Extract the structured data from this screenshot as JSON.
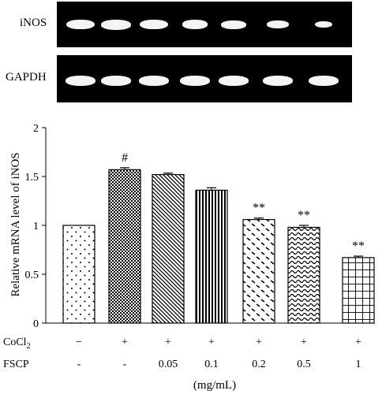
{
  "gels": [
    {
      "label": "iNOS",
      "bands": [
        0.95,
        1.0,
        0.95,
        0.85,
        0.8,
        0.7,
        0.55
      ]
    },
    {
      "label": "GAPDH",
      "bands": [
        1.0,
        1.0,
        1.0,
        1.0,
        1.0,
        1.0,
        1.0
      ]
    }
  ],
  "chart_data": {
    "type": "bar",
    "ylabel": "Relative mRNA level of iNOS",
    "ylim": [
      0,
      2
    ],
    "yticks": [
      "0",
      "0.5",
      "1",
      "1.5",
      "2"
    ],
    "ytick_values": [
      0,
      0.5,
      1,
      1.5,
      2
    ],
    "values": [
      1.0,
      1.57,
      1.52,
      1.36,
      1.06,
      0.98,
      0.67
    ],
    "errors": [
      0,
      0.02,
      0.015,
      0.025,
      0.015,
      0.02,
      0.015
    ],
    "significance": [
      "",
      "#",
      "",
      "",
      "**",
      "**",
      "**"
    ],
    "patterns": [
      "dots",
      "checker",
      "diag",
      "vlines",
      "dashes",
      "waves",
      "grid"
    ],
    "conditions": [
      {
        "label": "CoCl",
        "sub": "2",
        "values": [
          "−",
          "+",
          "+",
          "+",
          "+",
          "+",
          "+"
        ]
      },
      {
        "label": "FSCP",
        "sub": "",
        "values": [
          "-",
          "-",
          "0.05",
          "0.1",
          "0.2",
          "0.5",
          "1"
        ]
      }
    ],
    "xunit": "(mg/mL)"
  }
}
